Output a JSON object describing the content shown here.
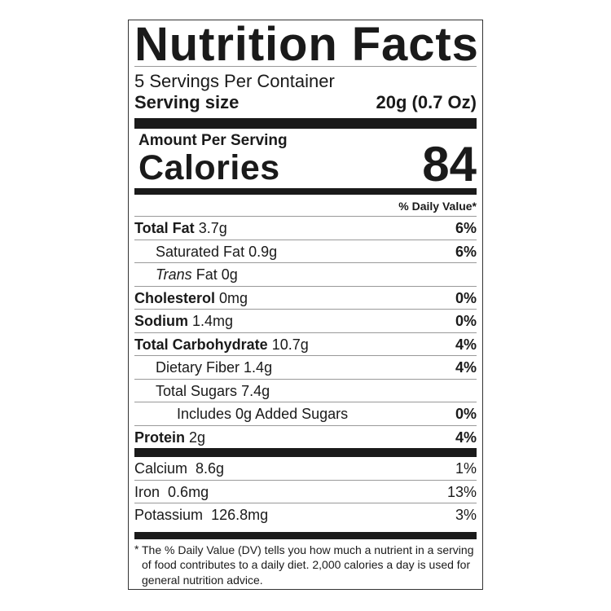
{
  "title": "Nutrition Facts",
  "servings_per_container": "5 Servings Per Container",
  "serving_size": {
    "label": "Serving size",
    "value": "20g (0.7 Oz)"
  },
  "amount_per_serving": "Amount Per Serving",
  "calories": {
    "label": "Calories",
    "value": "84"
  },
  "daily_value_header": "% Daily Value*",
  "nutrients": [
    {
      "name": "Total Fat",
      "amount": "3.7g",
      "dv": "6%"
    },
    {
      "name": "Saturated Fat",
      "amount": "0.9g",
      "dv": "6%"
    },
    {
      "prefix": "Trans",
      "name": "Fat",
      "amount": "0g",
      "dv": ""
    },
    {
      "name": "Cholesterol",
      "amount": "0mg",
      "dv": "0%"
    },
    {
      "name": "Sodium",
      "amount": "1.4mg",
      "dv": "0%"
    },
    {
      "name": "Total Carbohydrate",
      "amount": "10.7g",
      "dv": "4%"
    },
    {
      "name": "Dietary Fiber",
      "amount": "1.4g",
      "dv": "4%"
    },
    {
      "name": "Total Sugars",
      "amount": "7.4g",
      "dv": ""
    },
    {
      "name": "Includes 0g Added Sugars",
      "amount": "",
      "dv": "0%"
    },
    {
      "name": "Protein",
      "amount": "2g",
      "dv": "4%"
    }
  ],
  "minerals": [
    {
      "name": "Calcium",
      "amount": "8.6g",
      "dv": "1%"
    },
    {
      "name": "Iron",
      "amount": "0.6mg",
      "dv": "13%"
    },
    {
      "name": "Potassium",
      "amount": "126.8mg",
      "dv": "3%"
    }
  ],
  "footnote": {
    "asterisk": "*",
    "text": "The % Daily Value (DV) tells you how much a nutrient in a serving of food contributes to a daily diet. 2,000 calories a day is used for general nutrition advice."
  }
}
